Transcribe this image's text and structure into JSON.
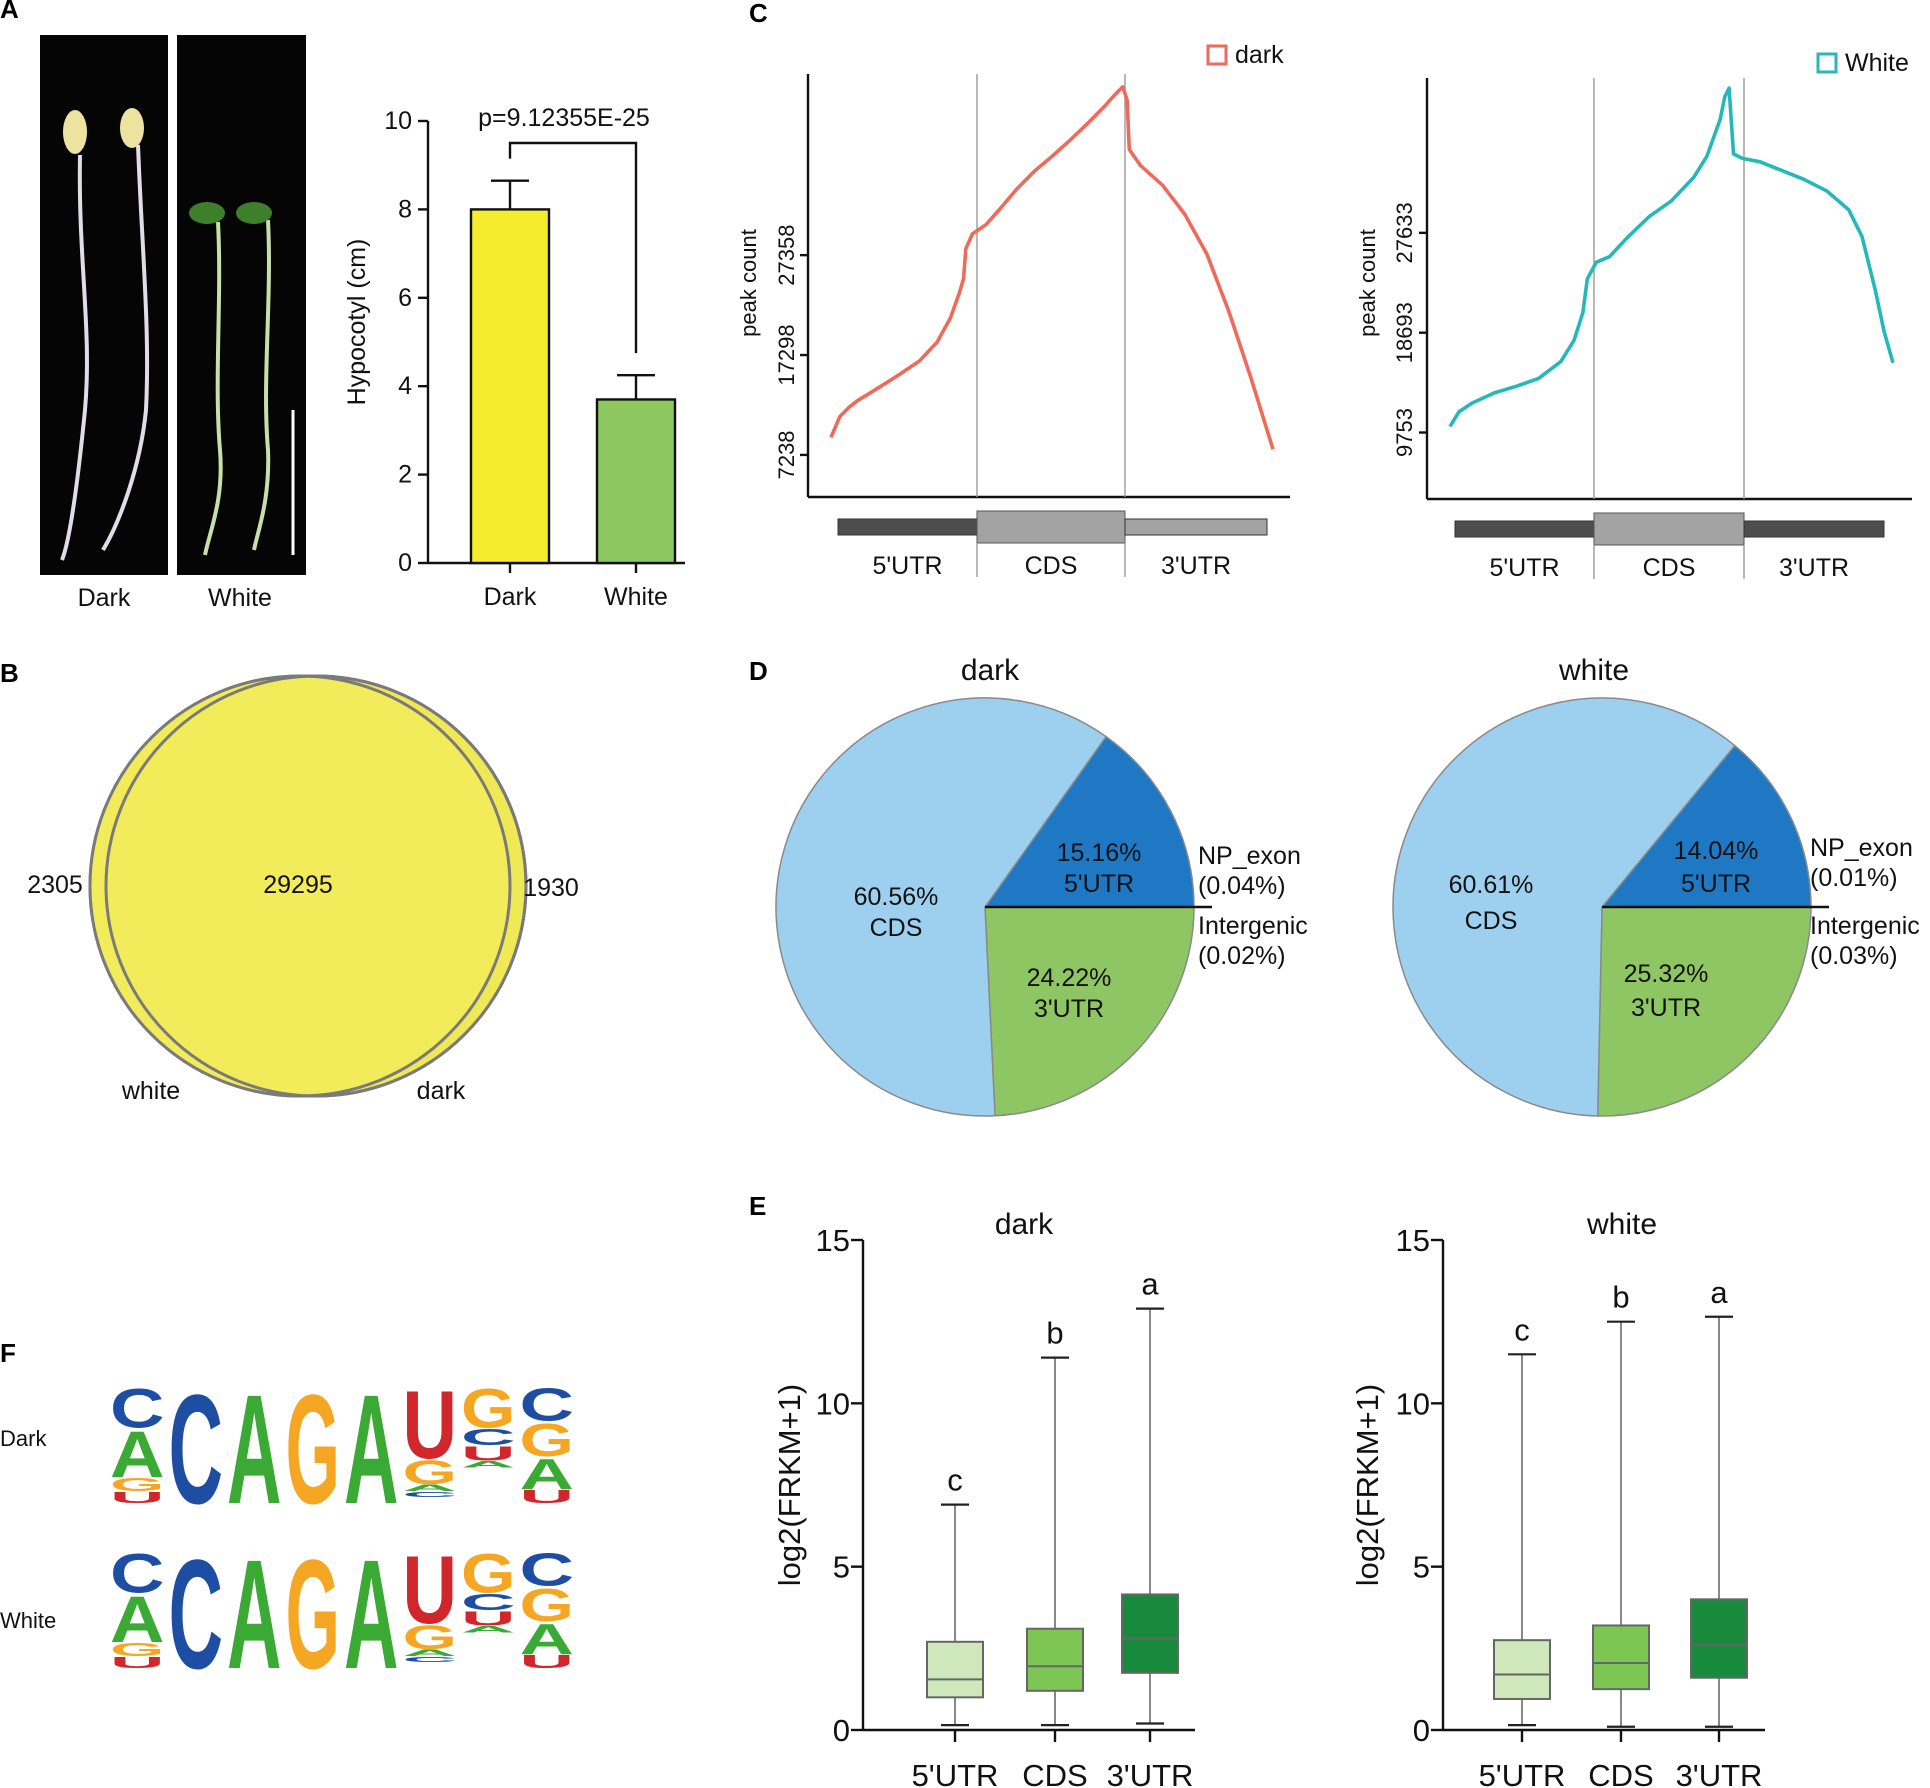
{
  "panels": {
    "A": {
      "label": "A",
      "photo_labels": [
        "Dark",
        "White"
      ],
      "chart_data": {
        "type": "bar",
        "categories": [
          "Dark",
          "White"
        ],
        "values": [
          8.0,
          3.7
        ],
        "errors": [
          0.65,
          0.55
        ],
        "colors": [
          "#f5ec2e",
          "#8dc85f"
        ],
        "ylabel": "Hypocotyl (cm)",
        "ylim": [
          0,
          10
        ],
        "yticks": [
          0,
          2,
          4,
          6,
          8,
          10
        ],
        "annotation": "p=9.12355E-25"
      }
    },
    "B": {
      "label": "B",
      "venn": {
        "left_only": "2305",
        "overlap": "29295",
        "right_only": "1930",
        "set_labels": [
          "white",
          "dark"
        ],
        "colors": {
          "white": "#6fc0ec",
          "dark": "#f0e956"
        }
      }
    },
    "C": {
      "label": "C",
      "chart_data": [
        {
          "type": "line",
          "legend": "dark",
          "color": "#f06a5a",
          "ylabel": "peak count",
          "yticks": [
            7238,
            17298,
            27358
          ],
          "regions": [
            "5'UTR",
            "CDS",
            "3'UTR"
          ],
          "x": [
            0.0,
            0.02,
            0.04,
            0.06,
            0.1,
            0.15,
            0.2,
            0.24,
            0.27,
            0.29,
            0.3,
            0.305,
            0.32,
            0.35,
            0.38,
            0.42,
            0.46,
            0.5,
            0.54,
            0.58,
            0.62,
            0.64,
            0.66,
            0.67,
            0.675,
            0.7,
            0.75,
            0.8,
            0.85,
            0.9,
            0.95,
            1.0
          ],
          "y": [
            9000,
            11100,
            12000,
            12700,
            13800,
            15200,
            16700,
            18600,
            21000,
            23500,
            25000,
            28000,
            29500,
            30400,
            31900,
            34000,
            35800,
            37300,
            38900,
            40600,
            42400,
            43400,
            44300,
            43000,
            38000,
            36400,
            34400,
            31500,
            27500,
            21700,
            15000,
            7800
          ]
        },
        {
          "type": "line",
          "legend": "White",
          "color": "#26b8b9",
          "ylabel": "peak count",
          "yticks": [
            9753,
            18693,
            27633
          ],
          "regions": [
            "5'UTR",
            "CDS",
            "3'UTR"
          ],
          "x": [
            0.0,
            0.02,
            0.05,
            0.1,
            0.15,
            0.2,
            0.25,
            0.28,
            0.3,
            0.31,
            0.33,
            0.36,
            0.4,
            0.45,
            0.5,
            0.55,
            0.58,
            0.61,
            0.62,
            0.63,
            0.64,
            0.66,
            0.7,
            0.75,
            0.8,
            0.85,
            0.9,
            0.93,
            0.96,
            0.98,
            1.0
          ],
          "y": [
            10300,
            11600,
            12400,
            13300,
            13900,
            14600,
            16100,
            18000,
            20500,
            23500,
            25000,
            25500,
            27200,
            29100,
            30500,
            32600,
            34500,
            37800,
            39800,
            40600,
            34700,
            34300,
            34000,
            33200,
            32400,
            31400,
            29700,
            27300,
            22500,
            18800,
            16000
          ]
        }
      ]
    },
    "D": {
      "label": "D",
      "chart_data": [
        {
          "type": "pie",
          "title": "dark",
          "slices": [
            {
              "name": "CDS",
              "value": 60.56,
              "label": "60.56%",
              "color": "#9dd0ee"
            },
            {
              "name": "5'UTR",
              "value": 15.16,
              "label": "15.16%",
              "color": "#1f78c4"
            },
            {
              "name": "3'UTR",
              "value": 24.22,
              "label": "24.22%",
              "color": "#8dc663"
            },
            {
              "name": "NP_exon",
              "value": 0.04,
              "label": "(0.04%)"
            },
            {
              "name": "Intergenic",
              "value": 0.02,
              "label": "(0.02%)"
            }
          ]
        },
        {
          "type": "pie",
          "title": "white",
          "slices": [
            {
              "name": "CDS",
              "value": 60.61,
              "label": "60.61%",
              "color": "#9dd0ee"
            },
            {
              "name": "5'UTR",
              "value": 14.04,
              "label": "14.04%",
              "color": "#1f78c4"
            },
            {
              "name": "3'UTR",
              "value": 25.32,
              "label": "25.32%",
              "color": "#8dc663"
            },
            {
              "name": "NP_exon",
              "value": 0.01,
              "label": "(0.01%)"
            },
            {
              "name": "Intergenic",
              "value": 0.03,
              "label": "(0.03%)"
            }
          ]
        }
      ]
    },
    "E": {
      "label": "E",
      "chart_data": [
        {
          "type": "box",
          "title": "dark",
          "ylabel": "log2(FRKM+1)",
          "ylim": [
            0,
            15
          ],
          "yticks": [
            0,
            5,
            10,
            15
          ],
          "categories": [
            "5'UTR",
            "CDS",
            "3'UTR"
          ],
          "letters": [
            "c",
            "b",
            "a"
          ],
          "colors": [
            "#cfe8bb",
            "#7dc654",
            "#188a3c"
          ],
          "boxes": [
            {
              "min": 0.15,
              "q1": 1.0,
              "median": 1.55,
              "q3": 2.7,
              "max": 6.9
            },
            {
              "min": 0.15,
              "q1": 1.2,
              "median": 1.95,
              "q3": 3.1,
              "max": 11.4
            },
            {
              "min": 0.2,
              "q1": 1.75,
              "median": 2.8,
              "q3": 4.15,
              "max": 12.9
            }
          ]
        },
        {
          "type": "box",
          "title": "white",
          "ylabel": "log2(FRKM+1)",
          "ylim": [
            0,
            15
          ],
          "yticks": [
            0,
            5,
            10,
            15
          ],
          "categories": [
            "5'UTR",
            "CDS",
            "3'UTR"
          ],
          "letters": [
            "c",
            "b",
            "a"
          ],
          "colors": [
            "#cfe8bb",
            "#7dc654",
            "#188a3c"
          ],
          "boxes": [
            {
              "min": 0.15,
              "q1": 0.95,
              "median": 1.7,
              "q3": 2.75,
              "max": 11.5
            },
            {
              "min": 0.1,
              "q1": 1.25,
              "median": 2.05,
              "q3": 3.2,
              "max": 12.5
            },
            {
              "min": 0.1,
              "q1": 1.6,
              "median": 2.6,
              "q3": 4.0,
              "max": 12.65
            }
          ]
        }
      ]
    },
    "F": {
      "label": "F",
      "rows": [
        {
          "name": "Dark",
          "main": [
            "C",
            "C",
            "A",
            "G",
            "A",
            "U",
            "G",
            "C"
          ]
        },
        {
          "name": "White",
          "main": [
            "C",
            "C",
            "A",
            "G",
            "A",
            "U",
            "G",
            "C"
          ]
        }
      ],
      "base_colors": {
        "A": "#3aaa35",
        "C": "#1e4ea3",
        "G": "#f5a623",
        "U": "#d0262c"
      }
    }
  }
}
